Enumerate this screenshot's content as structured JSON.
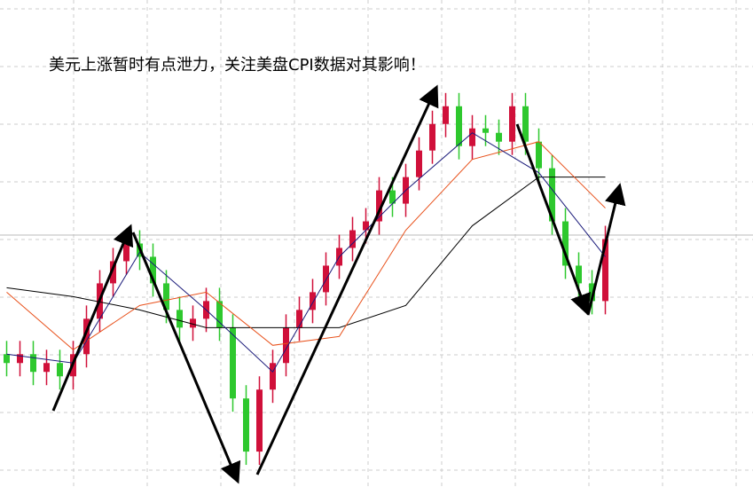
{
  "chart_data": {
    "type": "candlestick",
    "title": "美元上涨暂时有点泄力，关注美盘CPI数据对其影响！",
    "xlim": [
      -0.5,
      56.1
    ],
    "ylim": [
      0,
      110
    ],
    "grid": true,
    "up_color": "#d0103a",
    "down_color": "#2ec82e",
    "open": [
      30,
      28,
      30,
      26,
      28,
      25,
      30,
      38,
      46,
      51,
      55,
      52,
      46,
      40,
      36,
      38,
      42,
      36,
      20,
      8,
      22,
      28,
      36,
      40,
      44,
      50,
      54,
      58,
      60,
      67,
      64,
      70,
      76,
      82,
      86,
      77,
      81,
      80,
      78,
      86,
      78,
      72,
      60,
      50,
      46,
      42
    ],
    "close": [
      28,
      30,
      26,
      28,
      25,
      30,
      38,
      46,
      51,
      55,
      52,
      46,
      40,
      36,
      38,
      42,
      36,
      20,
      8,
      22,
      28,
      36,
      40,
      44,
      50,
      54,
      58,
      60,
      67,
      64,
      70,
      76,
      82,
      86,
      77,
      81,
      80,
      78,
      86,
      78,
      72,
      60,
      50,
      46,
      42,
      56
    ],
    "high": [
      33,
      33,
      33,
      31,
      31,
      33,
      41,
      49,
      54,
      58,
      58,
      55,
      49,
      43,
      41,
      45,
      45,
      39,
      23,
      25,
      31,
      39,
      43,
      47,
      53,
      57,
      61,
      63,
      70,
      70,
      73,
      79,
      85,
      89,
      89,
      84,
      84,
      83,
      89,
      89,
      81,
      75,
      63,
      53,
      49,
      59
    ],
    "low": [
      25,
      25,
      23,
      23,
      22,
      22,
      27,
      35,
      43,
      48,
      49,
      43,
      37,
      33,
      33,
      35,
      33,
      17,
      5,
      5,
      19,
      25,
      33,
      37,
      41,
      47,
      51,
      55,
      57,
      61,
      61,
      67,
      73,
      79,
      74,
      74,
      77,
      75,
      75,
      75,
      69,
      57,
      47,
      43,
      39,
      39
    ],
    "series": [
      {
        "color": "#000000",
        "x": [
          0,
          5,
          10,
          15,
          20,
          25,
          30,
          35,
          40,
          45
        ],
        "values": [
          45,
          43,
          40,
          36,
          36,
          36,
          41,
          59,
          70,
          70
        ]
      },
      {
        "color": "#e8501a",
        "x": [
          0,
          5,
          10,
          15,
          20,
          25,
          30,
          35,
          40,
          45
        ],
        "values": [
          44,
          31,
          41,
          44,
          32,
          34,
          58,
          74,
          78,
          63
        ]
      },
      {
        "color": "#1a1a7a",
        "x": [
          0,
          5,
          10,
          15,
          20,
          25,
          30,
          35,
          40,
          45
        ],
        "values": [
          30,
          28,
          53,
          40,
          26,
          52,
          67,
          80,
          71,
          52
        ]
      }
    ]
  }
}
